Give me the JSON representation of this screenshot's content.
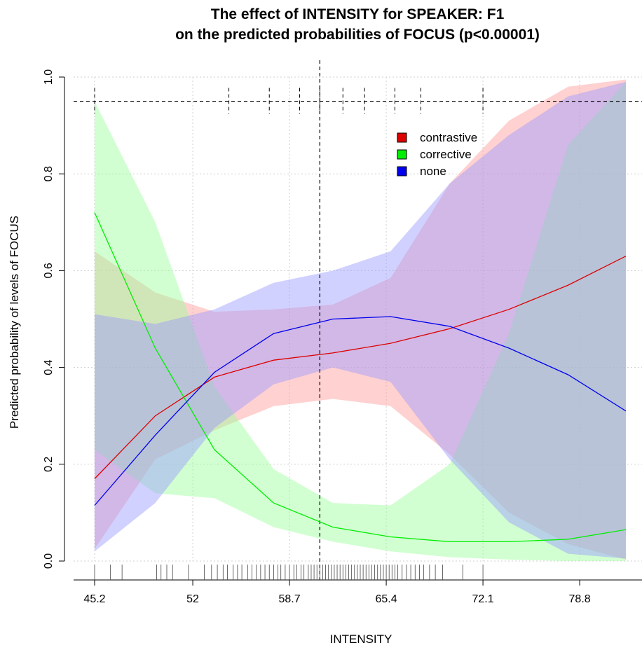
{
  "chart_data": {
    "type": "line",
    "title_line1": "The effect of INTENSITY for SPEAKER: F1",
    "title_line2": "on the predicted probabilities of FOCUS (p<0.00001)",
    "xlabel": "INTENSITY",
    "ylabel": "Predicted probability of levels of FOCUS",
    "xlim": [
      44.9,
      83.5
    ],
    "ylim": [
      0,
      1
    ],
    "x_ticks": [
      45.2,
      52,
      58.7,
      65.4,
      72.1,
      78.8
    ],
    "x_tick_labels": [
      "45.2",
      "52",
      "58.7",
      "65.4",
      "72.1",
      "78.8"
    ],
    "y_ticks": [
      0,
      0.2,
      0.4,
      0.6,
      0.8,
      1
    ],
    "y_tick_labels": [
      "0.0",
      "0.2",
      "0.4",
      "0.6",
      "0.8",
      "1.0"
    ],
    "grid": true,
    "legend_position": "top-right",
    "reference_line_y": 0.95,
    "reference_line_x": 60.8,
    "x": [
      45.2,
      49.4,
      53.5,
      57.6,
      61.7,
      65.7,
      69.8,
      73.9,
      78.0,
      82.0
    ],
    "series": [
      {
        "name": "contrastive",
        "color": "#dd0000",
        "band_color": "#ff9999",
        "values": [
          0.17,
          0.3,
          0.38,
          0.415,
          0.43,
          0.45,
          0.48,
          0.52,
          0.57,
          0.63
        ],
        "lower": [
          0.025,
          0.21,
          0.27,
          0.32,
          0.335,
          0.32,
          0.22,
          0.1,
          0.035,
          0.003
        ],
        "upper": [
          0.64,
          0.555,
          0.515,
          0.52,
          0.53,
          0.585,
          0.78,
          0.91,
          0.98,
          0.995
        ]
      },
      {
        "name": "corrective",
        "color": "#00ee00",
        "band_color": "#99ff99",
        "values": [
          0.72,
          0.44,
          0.23,
          0.12,
          0.07,
          0.05,
          0.04,
          0.04,
          0.045,
          0.065
        ],
        "lower": [
          0.23,
          0.14,
          0.13,
          0.07,
          0.04,
          0.02,
          0.008,
          0.003,
          0.0,
          0.0
        ],
        "upper": [
          0.95,
          0.7,
          0.36,
          0.19,
          0.12,
          0.115,
          0.2,
          0.47,
          0.86,
          0.99
        ]
      },
      {
        "name": "none",
        "color": "#0000ee",
        "band_color": "#9999ff",
        "values": [
          0.115,
          0.26,
          0.39,
          0.47,
          0.5,
          0.505,
          0.485,
          0.44,
          0.385,
          0.31
        ],
        "lower": [
          0.02,
          0.12,
          0.275,
          0.365,
          0.4,
          0.37,
          0.21,
          0.08,
          0.015,
          0.005
        ],
        "upper": [
          0.51,
          0.49,
          0.52,
          0.575,
          0.6,
          0.64,
          0.78,
          0.88,
          0.96,
          0.99
        ]
      }
    ],
    "top_tick_marks_x": [
      45.2,
      54.5,
      57.3,
      59.4,
      60.8,
      62.4,
      63.9,
      66.0,
      67.8,
      72.1
    ],
    "rug_x": [
      45.2,
      46.3,
      47.1,
      49.5,
      49.8,
      50.2,
      50.6,
      51.7,
      52.8,
      53.3,
      53.7,
      54.1,
      54.4,
      54.8,
      55.1,
      55.4,
      55.8,
      56.1,
      56.4,
      56.7,
      57.0,
      57.3,
      57.6,
      57.9,
      58.1,
      58.4,
      58.7,
      59.0,
      59.2,
      59.5,
      59.7,
      60.0,
      60.2,
      60.4,
      60.6,
      60.8,
      61.0,
      61.2,
      61.4,
      61.6,
      61.8,
      62.0,
      62.2,
      62.4,
      62.6,
      62.8,
      63.0,
      63.2,
      63.4,
      63.6,
      63.8,
      64.0,
      64.2,
      64.4,
      64.6,
      64.8,
      65.0,
      65.2,
      65.4,
      65.6,
      65.8,
      66.0,
      66.2,
      66.5,
      66.8,
      67.1,
      67.4,
      67.7,
      68.0,
      68.4,
      68.8,
      69.3,
      70.7,
      72.1
    ]
  }
}
